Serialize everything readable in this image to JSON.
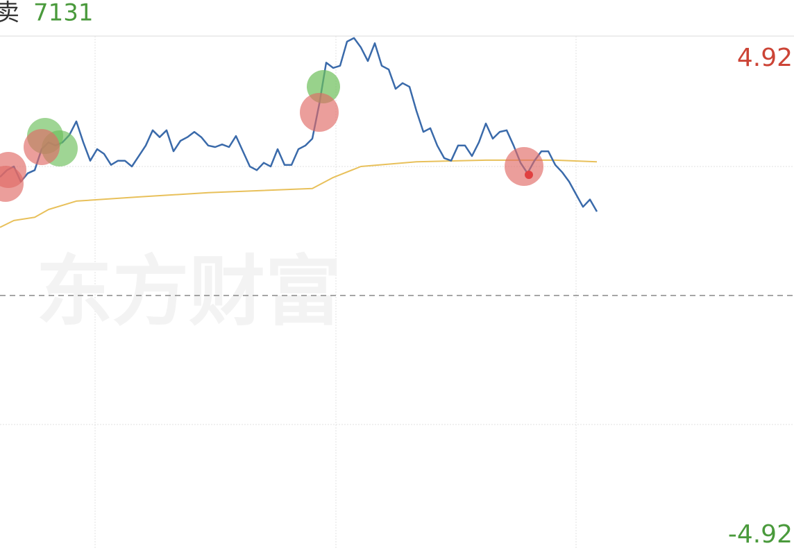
{
  "header": {
    "side_label": "卖",
    "volume": "7131"
  },
  "watermark": "东方财富",
  "chart_data": {
    "type": "line",
    "series": [
      {
        "name": "price",
        "color": "#3a6aaa",
        "values": [
          2.26,
          2.39,
          2.46,
          2.17,
          2.33,
          2.39,
          2.79,
          2.92,
          2.86,
          2.92,
          3.06,
          3.32,
          2.92,
          2.57,
          2.79,
          2.7,
          2.49,
          2.57,
          2.57,
          2.46,
          2.66,
          2.86,
          3.15,
          3.02,
          3.15,
          2.75,
          2.95,
          3.02,
          3.12,
          3.02,
          2.86,
          2.83,
          2.88,
          2.83,
          3.04,
          2.75,
          2.46,
          2.39,
          2.53,
          2.46,
          2.79,
          2.49,
          2.49,
          2.79,
          2.86,
          2.99,
          3.65,
          4.44,
          4.34,
          4.38,
          4.84,
          4.91,
          4.73,
          4.47,
          4.81,
          4.38,
          4.31,
          3.94,
          4.05,
          3.98,
          3.52,
          3.12,
          3.19,
          2.86,
          2.62,
          2.57,
          2.86,
          2.86,
          2.66,
          2.92,
          3.28,
          2.99,
          3.12,
          3.15,
          2.86,
          2.53,
          2.33,
          2.57,
          2.75,
          2.75,
          2.49,
          2.35,
          2.17,
          1.93,
          1.69,
          1.83,
          1.6
        ]
      },
      {
        "name": "average",
        "color": "#e8c05a",
        "x": [
          0,
          2,
          5,
          7,
          11,
          20,
          30,
          45,
          48,
          52,
          60,
          70,
          80,
          86
        ],
        "values": [
          1.3,
          1.43,
          1.49,
          1.64,
          1.8,
          1.88,
          1.96,
          2.04,
          2.25,
          2.46,
          2.55,
          2.58,
          2.58,
          2.55
        ]
      }
    ],
    "xlim": [
      0,
      86
    ],
    "ylim": [
      -4.92,
      4.92
    ],
    "yticks": [
      -4.92,
      4.92
    ],
    "tick_colors": [
      "#4a9a3c",
      "#cc4436"
    ]
  }
}
